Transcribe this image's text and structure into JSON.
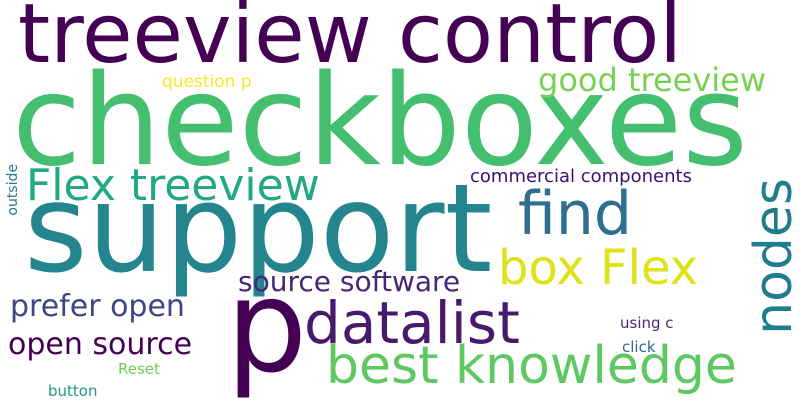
{
  "words": [
    {
      "key": "treeview-control",
      "text": "treeview control",
      "color": "#440154"
    },
    {
      "key": "checkboxes",
      "text": "checkboxes",
      "color": "#44bf70"
    },
    {
      "key": "support",
      "text": "support",
      "color": "#25858e"
    },
    {
      "key": "p",
      "text": "p",
      "color": "#440154"
    },
    {
      "key": "datalist",
      "text": "datalist",
      "color": "#481a6c"
    },
    {
      "key": "best-knowledge",
      "text": "best knowledge",
      "color": "#5ec962"
    },
    {
      "key": "nodes",
      "text": "nodes",
      "color": "#1f7d8d"
    },
    {
      "key": "find",
      "text": "find",
      "color": "#2e6e8e"
    },
    {
      "key": "box-flex",
      "text": "box Flex",
      "color": "#dde318"
    },
    {
      "key": "flex-treeview",
      "text": "Flex treeview",
      "color": "#22a884"
    },
    {
      "key": "good-treeview",
      "text": "good treeview",
      "color": "#7ad151"
    },
    {
      "key": "source-software",
      "text": "source software",
      "color": "#482677"
    },
    {
      "key": "prefer-open",
      "text": "prefer open",
      "color": "#414487"
    },
    {
      "key": "open-source",
      "text": "open source",
      "color": "#440154"
    },
    {
      "key": "commercial-components",
      "text": "commercial components",
      "color": "#3b0f70"
    },
    {
      "key": "question-p",
      "text": "question p",
      "color": "#fde725"
    },
    {
      "key": "outside",
      "text": "outside",
      "color": "#29798e"
    },
    {
      "key": "using-c",
      "text": "using c",
      "color": "#472d7b"
    },
    {
      "key": "click",
      "text": "click",
      "color": "#31688e"
    },
    {
      "key": "reset",
      "text": "Reset",
      "color": "#6ece58"
    },
    {
      "key": "button",
      "text": "button",
      "color": "#1f988b"
    }
  ]
}
